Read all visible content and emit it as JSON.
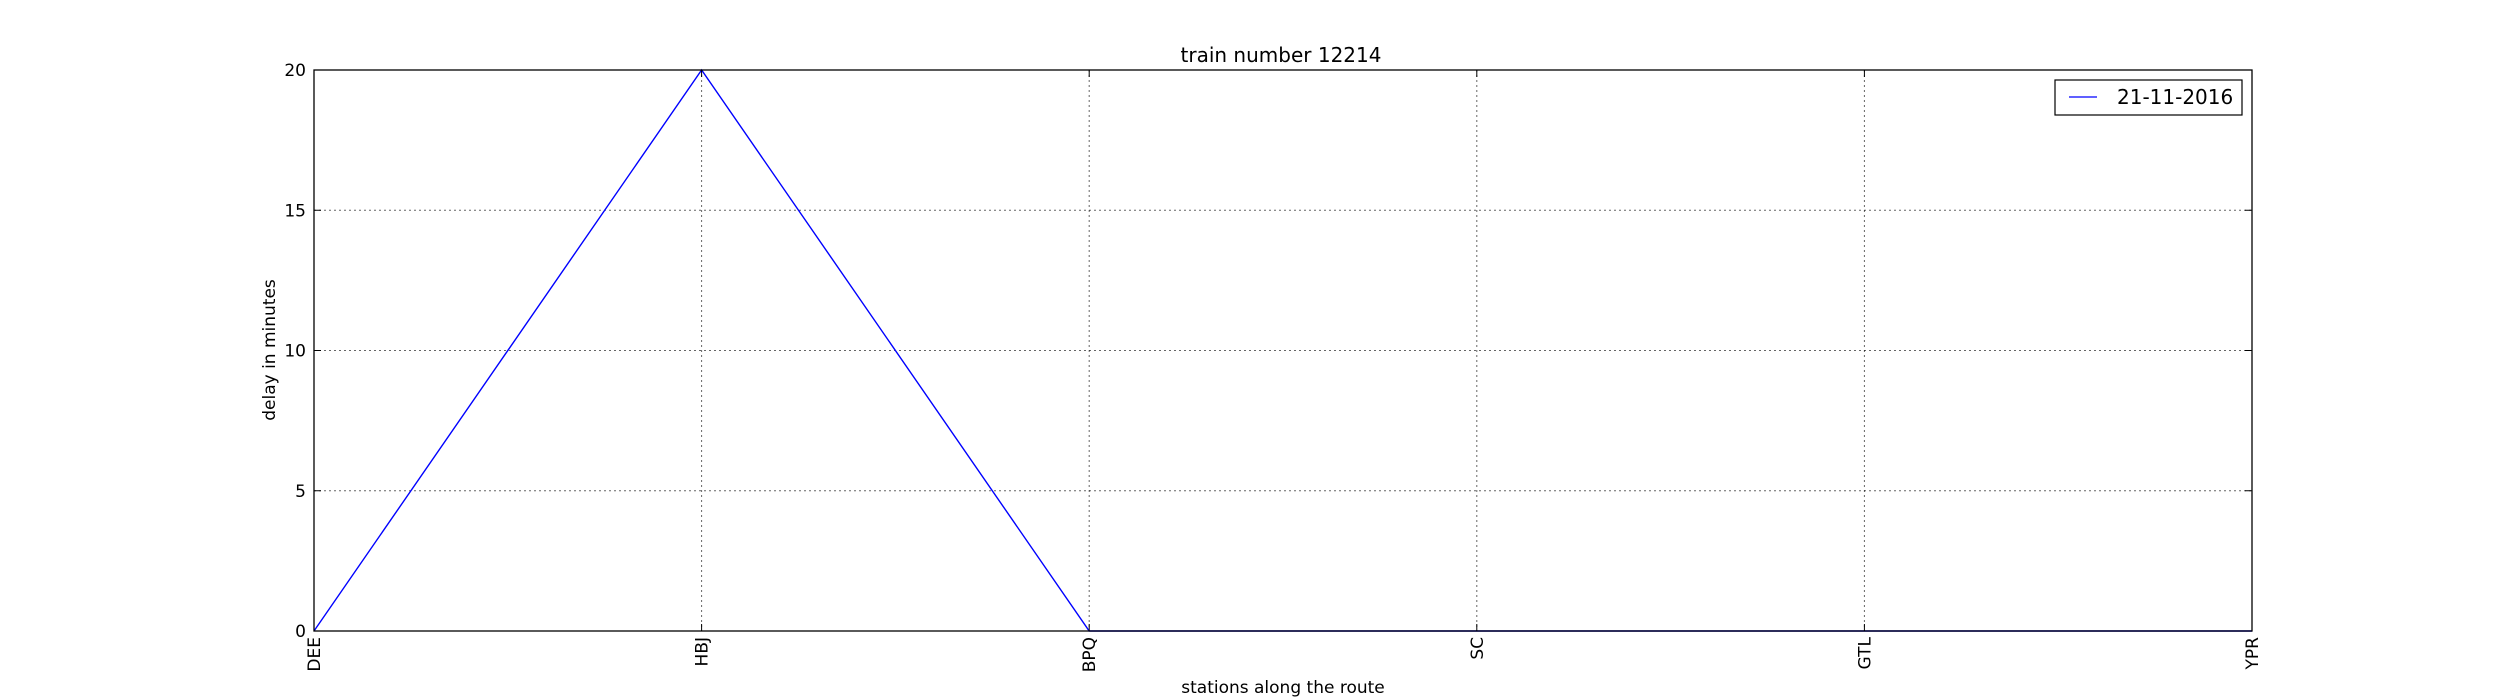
{
  "chart_data": {
    "type": "line",
    "title": "train number 12214",
    "xlabel": "stations along the route",
    "ylabel": "delay in minutes",
    "categories": [
      "DEE",
      "HBJ",
      "BPQ",
      "SC",
      "GTL",
      "YPR"
    ],
    "series": [
      {
        "name": "21-11-2016",
        "values": [
          0,
          20,
          0,
          0,
          0,
          0
        ],
        "color": "#0000ff"
      }
    ],
    "ylim": [
      0,
      20
    ],
    "yticks": [
      "0",
      "5",
      "10",
      "15",
      "20"
    ],
    "grid": true,
    "legend_position": "top-right"
  }
}
